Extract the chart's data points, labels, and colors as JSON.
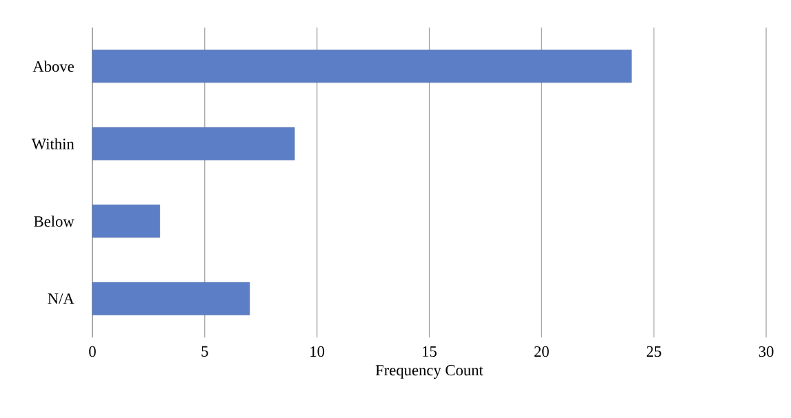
{
  "chart_data": {
    "type": "bar",
    "orientation": "horizontal",
    "categories": [
      "Above",
      "Within",
      "Below",
      "N/A"
    ],
    "values": [
      24,
      9,
      3,
      7
    ],
    "color": "#5b7ec6",
    "xlabel": "Frequency Count",
    "xlim": [
      0,
      30
    ],
    "xticks": [
      0,
      5,
      10,
      15,
      20,
      25,
      30
    ],
    "grid": "x"
  }
}
